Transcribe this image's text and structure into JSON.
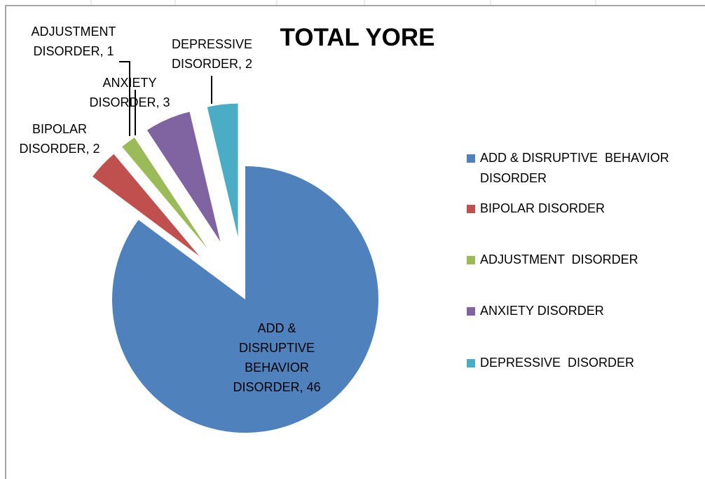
{
  "chart_data": {
    "type": "pie",
    "title": "TOTAL YORE",
    "categories": [
      "ADD & DISRUPTIVE  BEHAVIOR DISORDER",
      "BIPOLAR DISORDER",
      "ADJUSTMENT  DISORDER",
      "ANXIETY DISORDER",
      "DEPRESSIVE  DISORDER"
    ],
    "values": [
      46,
      2,
      1,
      3,
      2
    ],
    "value_labels": [
      "ADD & DISRUPTIVE BEHAVIOR DISORDER, 46",
      "BIPOLAR DISORDER, 2",
      "ADJUSTMENT DISORDER, 1",
      "ANXIETY DISORDER, 3",
      "DEPRESSIVE DISORDER, 2"
    ],
    "colors": [
      "#4f81bd",
      "#c0504d",
      "#9bbb59",
      "#8064a2",
      "#4bacc6"
    ],
    "legend": "right"
  }
}
